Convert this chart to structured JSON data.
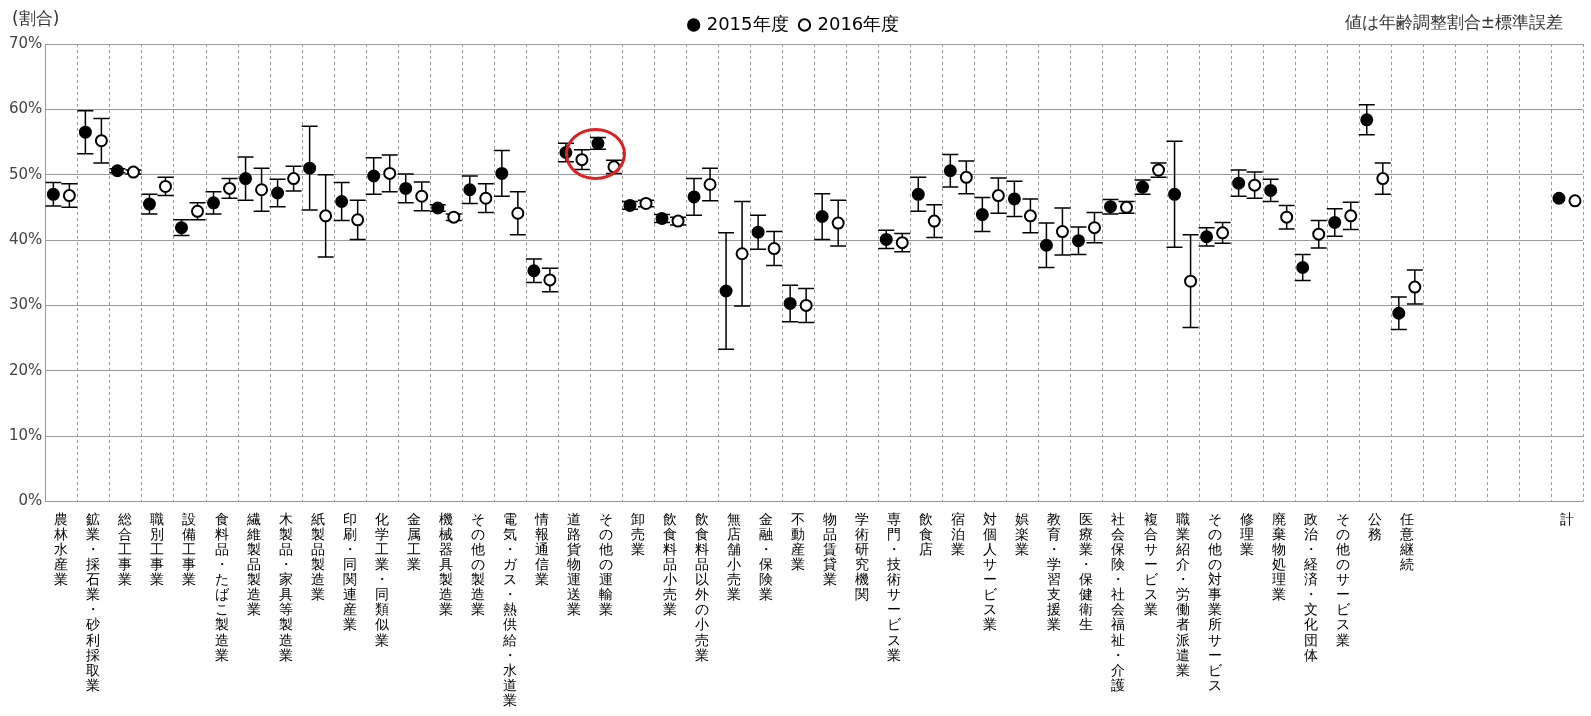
{
  "chart_data": {
    "type": "scatter",
    "ylabel": "(割合)",
    "annotations": [
      "値は年齢調整割合±標準誤差"
    ],
    "categories": [
      "農林水産業",
      "鉱業・採石業・砂利採取業",
      "総合工事業",
      "職別工事業",
      "設備工事業",
      "食料品・たばこ製造業",
      "繊維製品製造業",
      "木製品・家具等製造業",
      "紙製品製造業",
      "印刷・同関連産業",
      "化学工業・同類似業",
      "金属工業",
      "機械器具製造業",
      "その他の製造業",
      "電気・ガス・熱供給・水道業",
      "情報通信業",
      "道路貨物運送業",
      "その他の運輸業",
      "卸売業",
      "飲食料品小売業",
      "飲食料品以外の小売業",
      "無店舗小売業",
      "金融・保険業",
      "不動産業",
      "物品賃貸業",
      "学術研究機関",
      "専門・技術サービス業",
      "飲食店",
      "宿泊業",
      "対個人サービス業",
      "娯楽業",
      "教育・学習支援業",
      "医療業・保健衛生",
      "社会保険・社会福祉・介護",
      "複合サービス業",
      "職業紹介・労働者派遣業",
      "その他の対事業所サービス",
      "修理業",
      "廃棄物処理業",
      "政治・経済・文化団体",
      "その他のサービス業",
      "公務",
      "任意継続",
      null,
      null,
      null,
      null,
      "計"
    ],
    "series": [
      {
        "name": "2015年度",
        "color": "#000000",
        "values": [
          47.0,
          56.5,
          50.6,
          45.5,
          41.9,
          45.7,
          49.4,
          47.2,
          51.0,
          45.9,
          49.8,
          47.9,
          44.9,
          47.7,
          50.2,
          35.3,
          53.4,
          54.8,
          45.3,
          43.3,
          46.6,
          32.2,
          41.2,
          30.3,
          43.6,
          null,
          40.1,
          47.0,
          50.6,
          43.9,
          46.3,
          39.2,
          39.9,
          45.1,
          48.1,
          47.0,
          40.5,
          48.7,
          47.6,
          35.8,
          42.7,
          58.4,
          28.8,
          null,
          null,
          null,
          null,
          46.4
        ],
        "errors": [
          1.8,
          3.3,
          0.3,
          1.5,
          1.2,
          1.7,
          3.3,
          2.1,
          6.4,
          2.9,
          2.8,
          2.2,
          0.5,
          2.1,
          3.5,
          1.8,
          1.4,
          0.9,
          0.6,
          0.6,
          2.8,
          8.9,
          2.6,
          2.8,
          3.5,
          null,
          1.4,
          2.6,
          2.5,
          2.6,
          2.7,
          3.4,
          2.1,
          1.1,
          1.1,
          8.1,
          1.4,
          2.0,
          1.7,
          2.0,
          2.1,
          2.3,
          2.5,
          null,
          null,
          null,
          null,
          null
        ]
      },
      {
        "name": "2016年度",
        "color": "#ffffff",
        "values": [
          46.8,
          55.2,
          50.4,
          48.2,
          44.4,
          47.9,
          47.7,
          49.4,
          43.7,
          43.1,
          50.2,
          46.7,
          43.5,
          46.4,
          44.1,
          33.9,
          52.3,
          51.2,
          45.6,
          42.9,
          48.5,
          37.9,
          38.7,
          30.0,
          42.6,
          null,
          39.6,
          42.9,
          49.6,
          46.8,
          43.7,
          41.3,
          41.9,
          45.0,
          50.7,
          33.7,
          41.1,
          48.4,
          43.5,
          40.9,
          43.7,
          49.4,
          32.8,
          null,
          null,
          null,
          null,
          46.0
        ],
        "errors": [
          1.8,
          3.4,
          0.3,
          1.4,
          1.3,
          1.5,
          3.3,
          1.9,
          6.3,
          3.0,
          2.8,
          2.2,
          0.5,
          2.2,
          3.3,
          1.8,
          1.5,
          1.0,
          0.5,
          0.6,
          2.5,
          8.0,
          2.6,
          2.6,
          3.5,
          null,
          1.4,
          2.5,
          2.5,
          2.7,
          2.6,
          3.6,
          2.3,
          0.9,
          1.1,
          7.1,
          1.6,
          2.0,
          1.8,
          2.1,
          2.1,
          2.4,
          2.6,
          null,
          null,
          null,
          null,
          null
        ]
      }
    ],
    "ylim": [
      0,
      70
    ],
    "yticks": [
      {
        "value": 0,
        "label": "0%"
      },
      {
        "value": 10,
        "label": "10%"
      },
      {
        "value": 20,
        "label": "20%"
      },
      {
        "value": 30,
        "label": "30%"
      },
      {
        "value": 40,
        "label": "40%"
      },
      {
        "value": 50,
        "label": "50%"
      },
      {
        "value": 60,
        "label": "60%"
      },
      {
        "value": 70,
        "label": "70%"
      }
    ],
    "grid": true,
    "legend": "top",
    "marker": "circle"
  }
}
